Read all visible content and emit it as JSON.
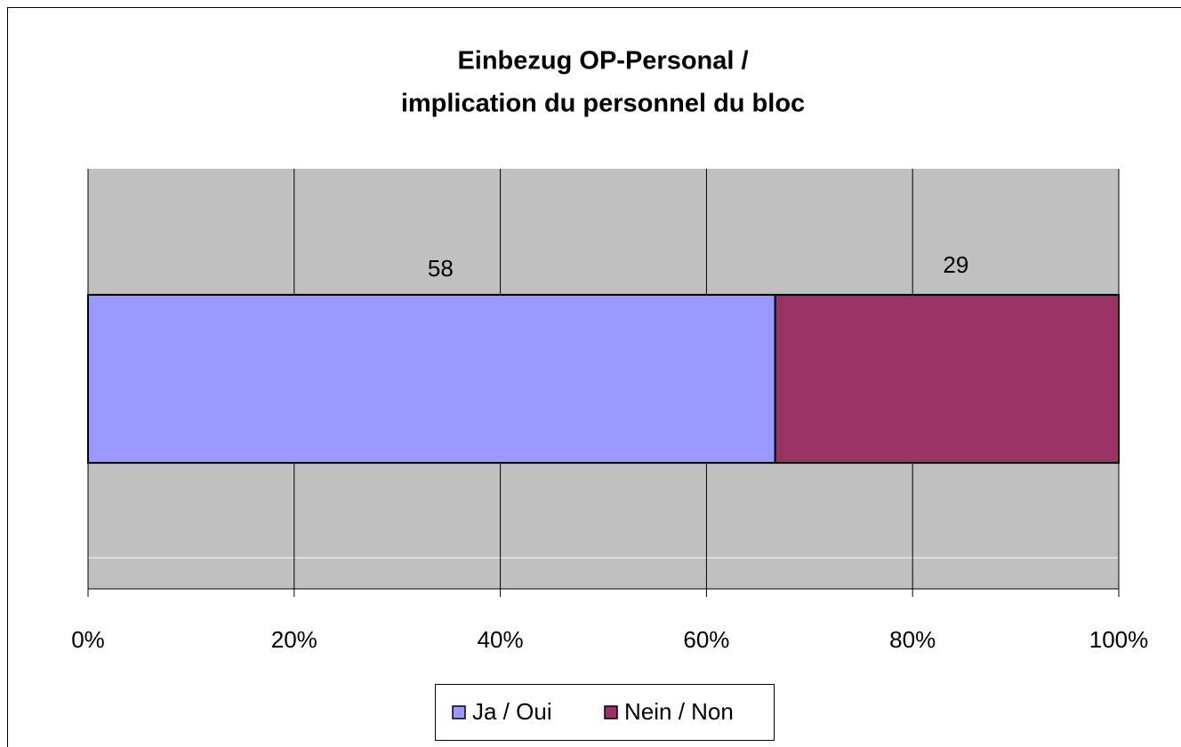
{
  "chart_data": {
    "type": "bar",
    "orientation": "horizontal",
    "stacked": "percent",
    "title": [
      "Einbezug OP-Personal /",
      "implication du personnel du bloc"
    ],
    "categories": [
      null
    ],
    "series": [
      {
        "name": "Ja / Oui",
        "color": "#9999ff",
        "values": [
          58
        ]
      },
      {
        "name": "Nein / Non",
        "color": "#993366",
        "values": [
          29
        ]
      }
    ],
    "xlim": [
      0,
      100
    ],
    "xticks": [
      {
        "value": 0,
        "label": "0%"
      },
      {
        "value": 20,
        "label": "20%"
      },
      {
        "value": 40,
        "label": "40%"
      },
      {
        "value": 60,
        "label": "60%"
      },
      {
        "value": 80,
        "label": "80%"
      },
      {
        "value": 100,
        "label": "100%"
      }
    ],
    "grid": true,
    "legend": "bottom"
  }
}
